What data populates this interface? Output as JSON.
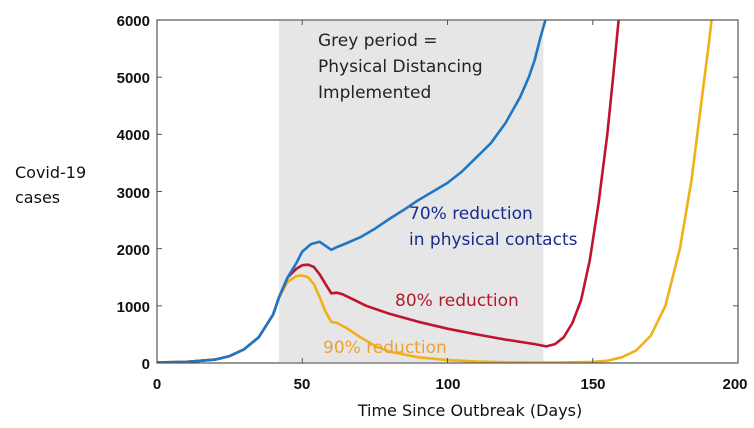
{
  "chart_data": {
    "type": "line",
    "title": "",
    "xlabel": "Time Since Outbreak (Days)",
    "ylabel_lines": [
      "Covid-19",
      "cases"
    ],
    "xlim": [
      0,
      200
    ],
    "ylim": [
      0,
      6000
    ],
    "xticks": [
      0,
      50,
      100,
      150,
      200
    ],
    "yticks": [
      0,
      1000,
      2000,
      3000,
      4000,
      5000,
      6000
    ],
    "grid": false,
    "shaded_region": {
      "x_range": [
        42,
        133
      ],
      "color": "#e6e6e6",
      "label_lines": [
        "Grey period =",
        "Physical Distancing",
        "Implemented"
      ]
    },
    "series": [
      {
        "name": "70% reduction in physical contacts",
        "color": "#1f77c4",
        "label_lines": [
          "70% reduction",
          "in physical contacts"
        ],
        "label_color": "#1a2a8c",
        "points": [
          [
            0,
            10
          ],
          [
            10,
            20
          ],
          [
            20,
            60
          ],
          [
            25,
            120
          ],
          [
            30,
            240
          ],
          [
            35,
            450
          ],
          [
            40,
            850
          ],
          [
            42,
            1150
          ],
          [
            45,
            1500
          ],
          [
            48,
            1750
          ],
          [
            50,
            1950
          ],
          [
            53,
            2080
          ],
          [
            56,
            2120
          ],
          [
            58,
            2050
          ],
          [
            60,
            1980
          ],
          [
            62,
            2030
          ],
          [
            65,
            2090
          ],
          [
            70,
            2200
          ],
          [
            75,
            2350
          ],
          [
            80,
            2520
          ],
          [
            85,
            2680
          ],
          [
            90,
            2850
          ],
          [
            95,
            3000
          ],
          [
            100,
            3150
          ],
          [
            105,
            3350
          ],
          [
            110,
            3600
          ],
          [
            115,
            3850
          ],
          [
            120,
            4200
          ],
          [
            125,
            4650
          ],
          [
            128,
            5000
          ],
          [
            130,
            5300
          ],
          [
            132,
            5700
          ],
          [
            134,
            6050
          ]
        ]
      },
      {
        "name": "80% reduction",
        "color": "#c0142c",
        "label_lines": [
          "80% reduction"
        ],
        "label_color": "#b01c2c",
        "points": [
          [
            0,
            10
          ],
          [
            10,
            20
          ],
          [
            20,
            60
          ],
          [
            25,
            120
          ],
          [
            30,
            240
          ],
          [
            35,
            450
          ],
          [
            40,
            850
          ],
          [
            42,
            1150
          ],
          [
            45,
            1500
          ],
          [
            48,
            1650
          ],
          [
            50,
            1710
          ],
          [
            52,
            1720
          ],
          [
            54,
            1680
          ],
          [
            56,
            1550
          ],
          [
            58,
            1380
          ],
          [
            60,
            1220
          ],
          [
            62,
            1230
          ],
          [
            64,
            1200
          ],
          [
            68,
            1100
          ],
          [
            72,
            1000
          ],
          [
            80,
            860
          ],
          [
            90,
            720
          ],
          [
            100,
            600
          ],
          [
            110,
            500
          ],
          [
            120,
            410
          ],
          [
            130,
            330
          ],
          [
            134,
            290
          ],
          [
            137,
            330
          ],
          [
            140,
            450
          ],
          [
            143,
            700
          ],
          [
            146,
            1100
          ],
          [
            149,
            1800
          ],
          [
            152,
            2800
          ],
          [
            155,
            4000
          ],
          [
            157,
            5000
          ],
          [
            159,
            6050
          ]
        ]
      },
      {
        "name": "90% reduction",
        "color": "#f0b018",
        "label_lines": [
          "90% reduction"
        ],
        "label_color": "#f0a030",
        "points": [
          [
            0,
            10
          ],
          [
            10,
            20
          ],
          [
            20,
            60
          ],
          [
            25,
            120
          ],
          [
            30,
            240
          ],
          [
            35,
            450
          ],
          [
            40,
            850
          ],
          [
            42,
            1150
          ],
          [
            45,
            1420
          ],
          [
            48,
            1520
          ],
          [
            50,
            1530
          ],
          [
            52,
            1500
          ],
          [
            54,
            1380
          ],
          [
            56,
            1150
          ],
          [
            58,
            900
          ],
          [
            60,
            720
          ],
          [
            62,
            700
          ],
          [
            65,
            620
          ],
          [
            70,
            450
          ],
          [
            75,
            300
          ],
          [
            80,
            200
          ],
          [
            90,
            100
          ],
          [
            100,
            50
          ],
          [
            110,
            25
          ],
          [
            120,
            12
          ],
          [
            130,
            8
          ],
          [
            140,
            10
          ],
          [
            150,
            20
          ],
          [
            155,
            40
          ],
          [
            160,
            100
          ],
          [
            165,
            220
          ],
          [
            170,
            480
          ],
          [
            175,
            1000
          ],
          [
            180,
            2000
          ],
          [
            184,
            3200
          ],
          [
            187,
            4400
          ],
          [
            190,
            5600
          ],
          [
            191,
            6050
          ]
        ]
      }
    ]
  }
}
